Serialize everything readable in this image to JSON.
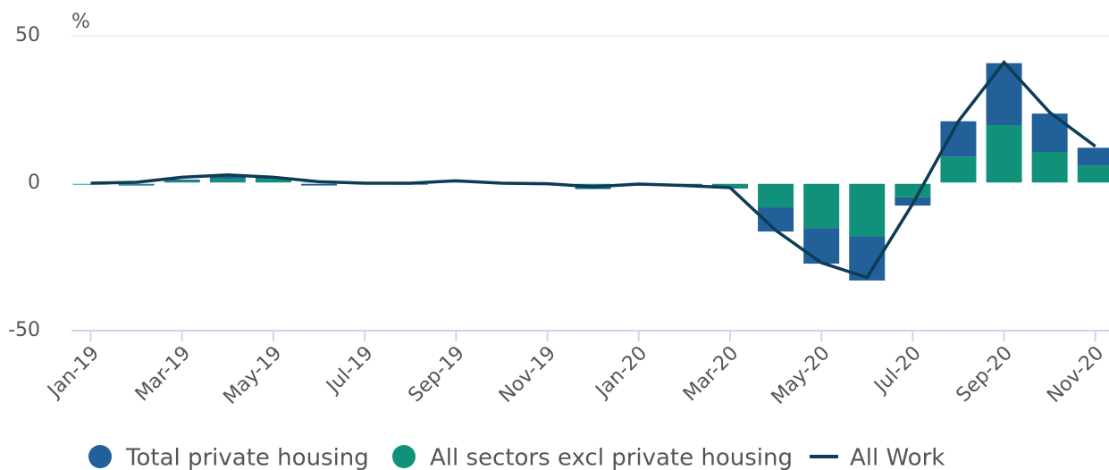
{
  "chart_data": {
    "type": "bar",
    "stacked": true,
    "unit_label": "%",
    "categories": [
      "Jan-19",
      null,
      "Mar-19",
      null,
      "May-19",
      null,
      "Jul-19",
      null,
      "Sep-19",
      null,
      "Nov-19",
      null,
      "Jan-20",
      null,
      "Mar-20",
      null,
      "May-20",
      null,
      "Jul-20",
      null,
      "Sep-20",
      null,
      "Nov-20"
    ],
    "series": [
      {
        "name": "Total private housing",
        "color": "#22609a",
        "type": "bar",
        "values": [
          0,
          -0.3,
          0.5,
          1,
          0.3,
          -0.8,
          0,
          -0.2,
          0.3,
          0,
          0,
          -1.2,
          -0.2,
          -0.5,
          -0.3,
          -8.2,
          -12.1,
          -15,
          -2.8,
          12,
          21,
          13,
          6
        ]
      },
      {
        "name": "All sectors excl private housing",
        "color": "#11917a",
        "type": "bar",
        "values": [
          -0.5,
          -0.5,
          0.7,
          1.5,
          1.5,
          0.3,
          -0.3,
          -0.3,
          0.5,
          0,
          0,
          -0.8,
          0,
          -0.5,
          -1.5,
          -8.2,
          -15.2,
          -18,
          -4.8,
          9,
          19.7,
          10.6,
          6
        ]
      },
      {
        "name": "All Work",
        "color": "#0d3c55",
        "type": "line",
        "values": [
          0,
          0.3,
          2,
          2.8,
          2,
          0.5,
          0,
          0,
          0.8,
          0,
          -0.2,
          -1.2,
          -0.3,
          -0.8,
          -1.5,
          -16,
          -27,
          -32,
          -7,
          21,
          41,
          24,
          12.5
        ]
      }
    ],
    "ylim": [
      -50,
      50
    ],
    "yticks": [
      -50,
      0,
      50
    ],
    "grid": true
  }
}
